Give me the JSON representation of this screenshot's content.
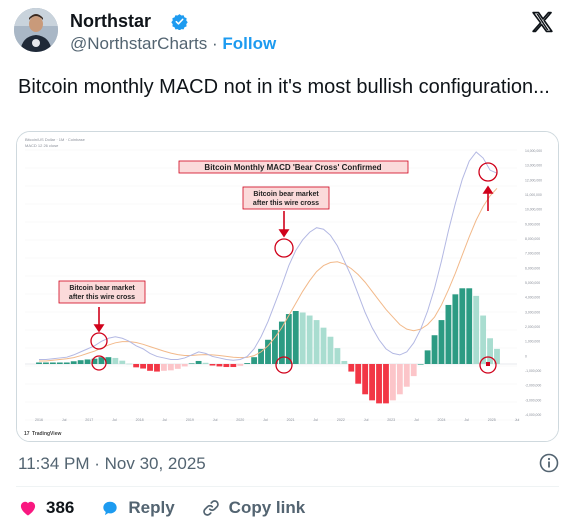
{
  "author": {
    "name": "Northstar",
    "handle": "@NorthstarCharts",
    "separator": "·",
    "follow_label": "Follow"
  },
  "tweet": {
    "text": "Bitcoin monthly MACD not in it's most bullish configuration..."
  },
  "chart_data": {
    "type": "line",
    "title": "",
    "annotations": [
      "Bitcoin Monthly MACD 'Bear Cross' Confirmed",
      "Bitcoin bear market after this wire cross",
      "Bitcoin bear market after this wire cross"
    ],
    "x_ticks": [
      "2016",
      "Jul",
      "2017",
      "Jul",
      "2018",
      "Jul",
      "2019",
      "Jul",
      "2020",
      "Jul",
      "2021",
      "Jul",
      "2022",
      "Jul",
      "2023",
      "Jul",
      "2024",
      "Jul",
      "2025",
      "Jul"
    ],
    "y_ticks": [
      "14,000,000",
      "13,000,000",
      "12,000,000",
      "11,000,000",
      "10,000,000",
      "9,000,000",
      "8,000,000",
      "7,000,000",
      "6,000,000",
      "5,000,000",
      "4,000,000",
      "3,000,000",
      "2,000,000",
      "1,000,000",
      "0",
      "-1,000,000",
      "-2,000,000",
      "-3,000,000",
      "-4,000,000"
    ],
    "series": [
      {
        "values": [
          0.3,
          0.3,
          0.35,
          0.4,
          0.45,
          0.6,
          0.8,
          1.0,
          1.2,
          1.5,
          1.7,
          1.8,
          1.7,
          1.5,
          1.2,
          1.0,
          0.7,
          0.5,
          0.4,
          0.3,
          0.3,
          0.4,
          0.6,
          0.8,
          0.7,
          0.5,
          0.4,
          0.3,
          0.25,
          0.3,
          0.5,
          1.0,
          1.8,
          2.8,
          4.0,
          5.2,
          6.5,
          7.5,
          8.2,
          8.7,
          9.0,
          8.9,
          8.5,
          7.8,
          6.8,
          5.8,
          4.6,
          3.4,
          2.4,
          1.6,
          1.0,
          0.7,
          0.6,
          0.8,
          1.4,
          2.3,
          3.5,
          5.0,
          6.8,
          8.8,
          10.6,
          12.2,
          13.4,
          14.0,
          13.6,
          12.8,
          12.6
        ]
      },
      {
        "values": [
          0.2,
          0.2,
          0.25,
          0.3,
          0.35,
          0.42,
          0.55,
          0.7,
          0.85,
          1.05,
          1.25,
          1.4,
          1.48,
          1.48,
          1.42,
          1.3,
          1.15,
          1.0,
          0.85,
          0.72,
          0.62,
          0.56,
          0.56,
          0.6,
          0.62,
          0.6,
          0.56,
          0.5,
          0.45,
          0.42,
          0.44,
          0.55,
          0.8,
          1.2,
          1.75,
          2.4,
          3.2,
          4.0,
          4.8,
          5.5,
          6.1,
          6.5,
          6.7,
          6.75,
          6.6,
          6.3,
          5.9,
          5.4,
          4.8,
          4.2,
          3.6,
          3.1,
          2.6,
          2.3,
          2.2,
          2.3,
          2.6,
          3.1,
          3.9,
          4.9,
          6.0,
          7.2,
          8.4,
          9.5,
          10.4,
          11.1,
          11.6
        ]
      }
    ],
    "histogram": [
      0.1,
      0.1,
      0.1,
      0.1,
      0.1,
      0.18,
      0.25,
      0.3,
      0.35,
      0.45,
      0.45,
      0.4,
      0.22,
      0.02,
      -0.22,
      -0.3,
      -0.45,
      -0.5,
      -0.45,
      -0.42,
      -0.32,
      -0.16,
      0.04,
      0.2,
      0.08,
      -0.1,
      -0.16,
      -0.2,
      -0.2,
      -0.12,
      0.06,
      0.45,
      1.0,
      1.6,
      2.25,
      2.8,
      3.3,
      3.5,
      3.4,
      3.2,
      2.9,
      2.4,
      1.8,
      1.05,
      0.2,
      -0.5,
      -1.3,
      -2.0,
      -2.4,
      -2.6,
      -2.6,
      -2.4,
      -2.0,
      -1.5,
      -0.8,
      0.0,
      0.9,
      1.9,
      2.9,
      3.9,
      4.6,
      5.0,
      5.0,
      4.5,
      3.2,
      1.7,
      1.0
    ],
    "ylim": [
      -4,
      14
    ],
    "colors": {
      "fast_line": "#b3b8e3",
      "slow_line": "#f2b98a",
      "hist_up_strong": "#2c9b83",
      "hist_up_weak": "#a9ddd0",
      "hist_down_strong": "#f23645",
      "hist_down_weak": "#fcc5c9",
      "annotation": "#d0021b"
    }
  },
  "chart_texts": {
    "header_line1": "Bitcoin/US Dollar · 1M · Coinbase",
    "header_line2": "MACD 12 26 close",
    "watermark": "TradingView",
    "callout_main": "Bitcoin Monthly MACD 'Bear Cross' Confirmed",
    "callout_left_1": "Bitcoin bear market",
    "callout_left_2": "after this wire cross",
    "callout_mid_1": "Bitcoin bear market",
    "callout_mid_2": "after this wire cross"
  },
  "meta": {
    "timestamp": "11:34 PM · Nov 30, 2025"
  },
  "actions": {
    "likes": "386",
    "reply_label": "Reply",
    "copy_link_label": "Copy link"
  }
}
